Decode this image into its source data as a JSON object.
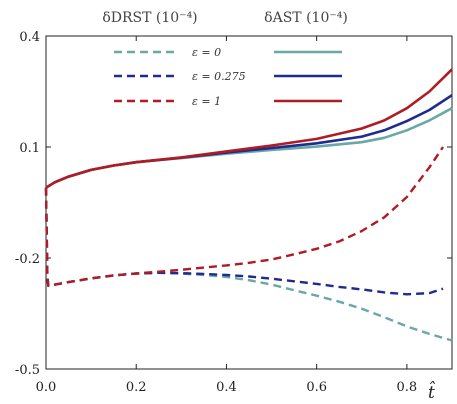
{
  "chart_data": {
    "type": "line",
    "xlabel": "t̂",
    "column_headers": [
      "δDRST (10⁻⁴)",
      "δAST (10⁻⁴)"
    ],
    "xlim": [
      0,
      0.9
    ],
    "ylim": [
      -0.5,
      0.4
    ],
    "x_ticks": [
      "0.0",
      "0.2",
      "0.4",
      "0.6",
      "0.8"
    ],
    "y_ticks": [
      "0.4",
      "0.1",
      "-0.2",
      "-0.5"
    ],
    "legend_placement": "top",
    "series": [
      {
        "name": "ε = 0",
        "color": "#6aa8a6",
        "AST": {
          "x": [
            0.0,
            0.02,
            0.05,
            0.1,
            0.15,
            0.2,
            0.3,
            0.4,
            0.5,
            0.6,
            0.7,
            0.75,
            0.8,
            0.85,
            0.9
          ],
          "y": [
            -0.01,
            0.005,
            0.02,
            0.038,
            0.05,
            0.059,
            0.07,
            0.082,
            0.092,
            0.101,
            0.113,
            0.125,
            0.145,
            0.172,
            0.205
          ]
        },
        "DRST": {
          "x": [
            0.0,
            0.003,
            0.005,
            0.02,
            0.05,
            0.1,
            0.15,
            0.2,
            0.25,
            0.3,
            0.35,
            0.4,
            0.45,
            0.5,
            0.55,
            0.6,
            0.65,
            0.7,
            0.75,
            0.8,
            0.85,
            0.9
          ],
          "y": [
            -0.01,
            -0.25,
            -0.275,
            -0.272,
            -0.265,
            -0.255,
            -0.247,
            -0.242,
            -0.24,
            -0.242,
            -0.246,
            -0.251,
            -0.26,
            -0.272,
            -0.287,
            -0.302,
            -0.318,
            -0.337,
            -0.36,
            -0.385,
            -0.405,
            -0.423
          ]
        }
      },
      {
        "name": "ε = 0.275",
        "color": "#1f2b8e",
        "AST": {
          "x": [
            0.0,
            0.02,
            0.05,
            0.1,
            0.15,
            0.2,
            0.3,
            0.4,
            0.5,
            0.6,
            0.7,
            0.75,
            0.8,
            0.85,
            0.9
          ],
          "y": [
            -0.01,
            0.005,
            0.02,
            0.038,
            0.05,
            0.059,
            0.071,
            0.085,
            0.097,
            0.11,
            0.128,
            0.145,
            0.17,
            0.2,
            0.24
          ]
        },
        "DRST": {
          "x": [
            0.0,
            0.003,
            0.005,
            0.02,
            0.05,
            0.1,
            0.15,
            0.2,
            0.25,
            0.3,
            0.35,
            0.4,
            0.45,
            0.5,
            0.55,
            0.6,
            0.65,
            0.7,
            0.75,
            0.8,
            0.85,
            0.88
          ],
          "y": [
            -0.01,
            -0.25,
            -0.275,
            -0.272,
            -0.265,
            -0.255,
            -0.247,
            -0.242,
            -0.24,
            -0.241,
            -0.243,
            -0.246,
            -0.25,
            -0.256,
            -0.263,
            -0.27,
            -0.278,
            -0.285,
            -0.293,
            -0.298,
            -0.295,
            -0.283
          ]
        }
      },
      {
        "name": "ε = 1",
        "color": "#b01c22",
        "AST": {
          "x": [
            0.0,
            0.02,
            0.05,
            0.1,
            0.15,
            0.2,
            0.3,
            0.4,
            0.5,
            0.6,
            0.7,
            0.75,
            0.8,
            0.85,
            0.9
          ],
          "y": [
            -0.01,
            0.005,
            0.02,
            0.038,
            0.05,
            0.059,
            0.072,
            0.088,
            0.104,
            0.122,
            0.15,
            0.172,
            0.205,
            0.25,
            0.31
          ]
        },
        "DRST": {
          "x": [
            0.0,
            0.003,
            0.005,
            0.02,
            0.05,
            0.1,
            0.15,
            0.2,
            0.25,
            0.3,
            0.35,
            0.4,
            0.45,
            0.5,
            0.55,
            0.6,
            0.65,
            0.7,
            0.75,
            0.8,
            0.85,
            0.88
          ],
          "y": [
            -0.01,
            -0.25,
            -0.275,
            -0.272,
            -0.265,
            -0.255,
            -0.247,
            -0.242,
            -0.237,
            -0.232,
            -0.226,
            -0.22,
            -0.213,
            -0.204,
            -0.19,
            -0.175,
            -0.155,
            -0.127,
            -0.09,
            -0.035,
            0.045,
            0.1
          ]
        }
      }
    ]
  }
}
